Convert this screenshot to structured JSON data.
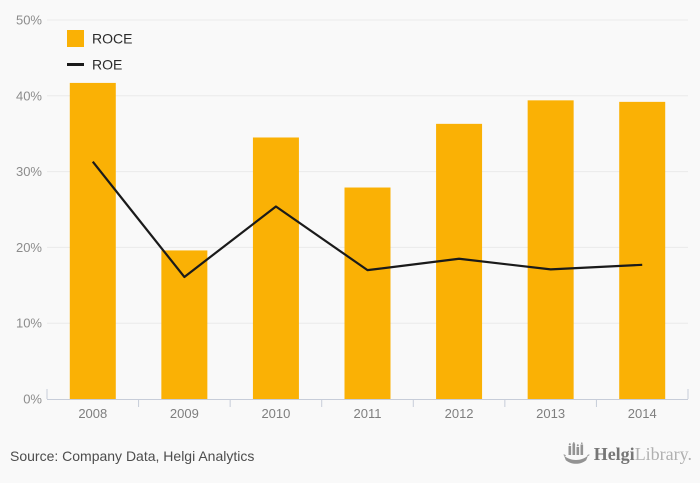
{
  "chart_data": {
    "type": "bar",
    "categories": [
      "2008",
      "2009",
      "2010",
      "2011",
      "2012",
      "2013",
      "2014"
    ],
    "series": [
      {
        "name": "ROCE",
        "type": "bar",
        "color": "#FAB105",
        "values": [
          41.7,
          19.6,
          34.5,
          27.9,
          36.3,
          39.4,
          39.2
        ]
      },
      {
        "name": "ROE",
        "type": "line",
        "color": "#1a1a1a",
        "values": [
          31.3,
          16.1,
          25.4,
          17.0,
          18.5,
          17.1,
          17.7
        ]
      }
    ],
    "title": "",
    "xlabel": "",
    "ylabel": "",
    "ylim": [
      0,
      50
    ],
    "yticks_values": [
      0,
      10,
      20,
      30,
      40,
      50
    ],
    "yticks_labels": [
      "0%",
      "10%",
      "20%",
      "30%",
      "40%",
      "50%"
    ],
    "grid": true,
    "legend_position": "top-left"
  },
  "footer": {
    "source_note": "Source: Company Data, Helgi Analytics",
    "logo": {
      "brand_bold": "Helgi",
      "brand_light": "Library."
    }
  },
  "colors": {
    "background": "#f9f9f9",
    "gridline": "#eaeaea",
    "axis": "#c7cdd9",
    "bar": "#FAB105",
    "line": "#1a1a1a"
  }
}
